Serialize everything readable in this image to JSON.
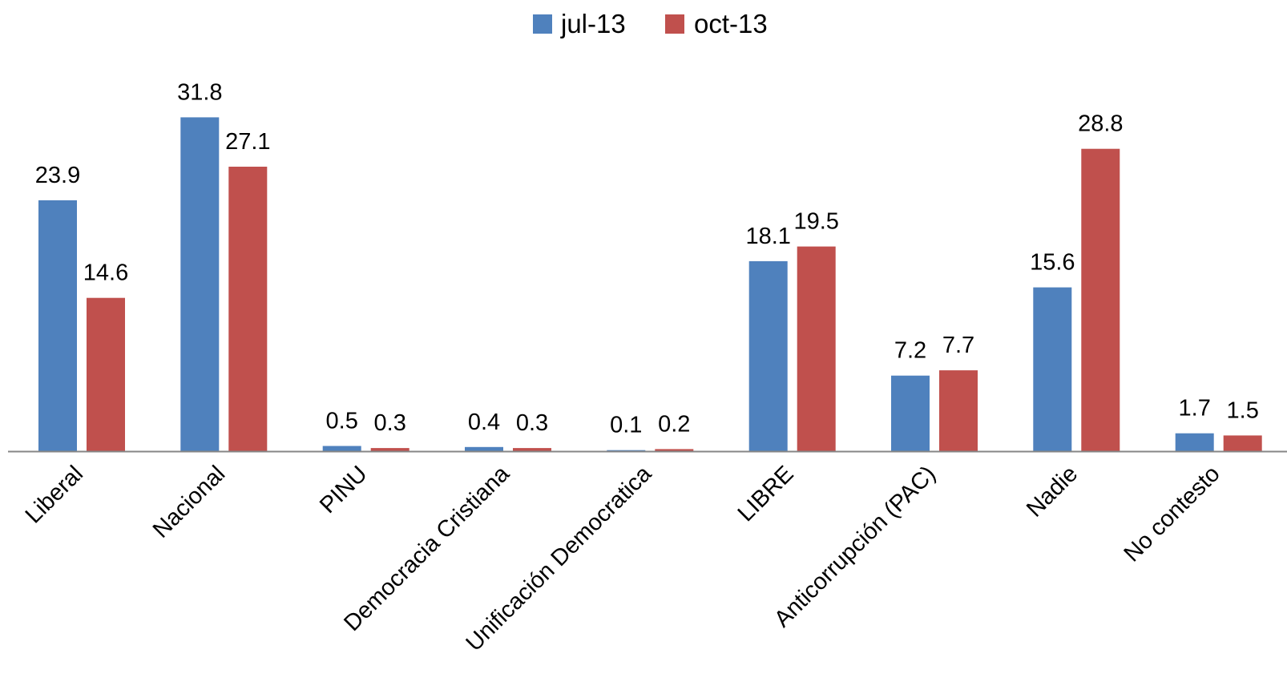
{
  "chart_data": {
    "type": "bar",
    "title": "",
    "xlabel": "",
    "ylabel": "",
    "ylim": [
      0,
      35
    ],
    "grid": false,
    "legend_position": "top",
    "categories": [
      "Liberal",
      "Nacional",
      "PINU",
      "Democracia Cristiana",
      "Unificación Democratica",
      "LIBRE",
      "Anticorrupción (PAC)",
      "Nadie",
      "No contesto"
    ],
    "series": [
      {
        "name": "jul-13",
        "color": "#4F81BD",
        "values": [
          23.9,
          31.8,
          0.5,
          0.4,
          0.1,
          18.1,
          7.2,
          15.6,
          1.7
        ]
      },
      {
        "name": "oct-13",
        "color": "#C0504D",
        "values": [
          14.6,
          27.1,
          0.3,
          0.3,
          0.2,
          19.5,
          7.7,
          28.8,
          1.5
        ]
      }
    ]
  }
}
